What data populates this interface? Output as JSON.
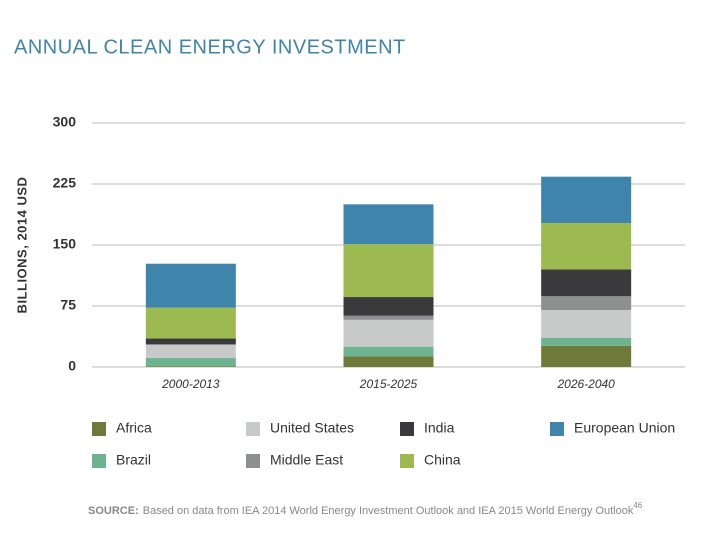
{
  "chart_data": {
    "type": "stacked_bar",
    "title": "ANNUAL CLEAN ENERGY INVESTMENT",
    "y_label": "BILLIONS, 2014 USD",
    "categories": [
      "2000-2013",
      "2015-2025",
      "2026-2040"
    ],
    "series": [
      {
        "name": "Africa",
        "color": "#6f7a3a",
        "values": [
          1,
          13,
          26
        ]
      },
      {
        "name": "Brazil",
        "color": "#6db38f",
        "values": [
          10,
          12,
          10
        ]
      },
      {
        "name": "United States",
        "color": "#c8c9c9",
        "values": [
          16,
          33,
          34
        ]
      },
      {
        "name": "Middle East",
        "color": "#8e8f8f",
        "values": [
          1,
          5,
          17
        ]
      },
      {
        "name": "India",
        "color": "#3a3a3c",
        "values": [
          7,
          23,
          33
        ]
      },
      {
        "name": "China",
        "color": "#9cba4f",
        "values": [
          38,
          65,
          57
        ]
      },
      {
        "name": "European Union",
        "color": "#3f84ab",
        "values": [
          54,
          49,
          57
        ]
      }
    ],
    "ylim": [
      0,
      300
    ],
    "yticks": [
      0,
      75,
      150,
      225,
      300
    ],
    "grid": true,
    "source_label": "SOURCE:",
    "source": "Based on data from IEA 2014 World Energy Investment Outlook and IEA 2015 World Energy Outlook",
    "footnote": "46"
  }
}
